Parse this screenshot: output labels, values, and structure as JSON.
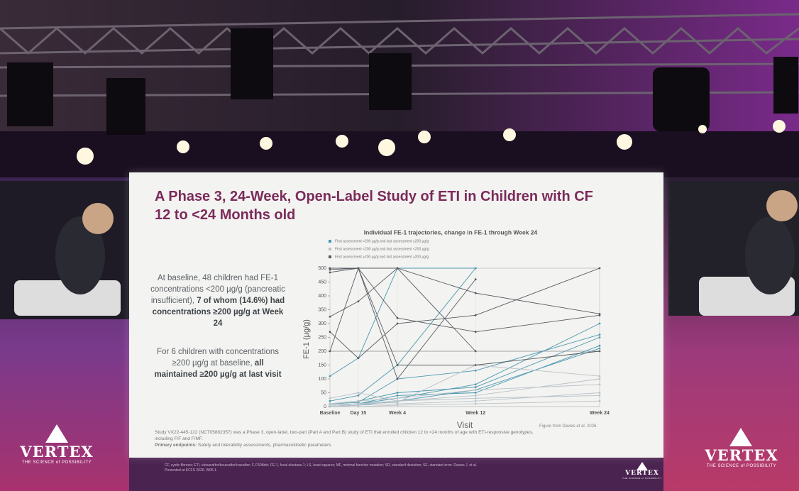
{
  "slide": {
    "title": "A Phase 3, 24-Week, Open-Label Study of ETI in Children with CF 12 to <24 Months old",
    "paragraphs": [
      [
        {
          "text": "At baseline, 48 children had FE-1 concentrations <200 µg/g (pancreatic insufficient), "
        },
        {
          "text": "7 of whom (14.6%) had concentrations ≥200 µg/g at Week 24",
          "bold": true
        }
      ],
      [
        {
          "text": "For 6 children with concentrations ≥200 µg/g at baseline, "
        },
        {
          "text": "all maintained ≥200 µg/g at last visit",
          "bold": true
        }
      ]
    ],
    "footnote": [
      {
        "text": "Study VX22-445-122 (NCT05882357) was a Phase 3, open-label, two-part (Part A and Part B) study of ETI that enrolled children 12 to <24 months of age with ETI-responsive genotypes, including F/F and F/MF."
      },
      {
        "text": "Primary endpoints:",
        "bold": true
      },
      {
        "text": " Safety and tolerability assessments, pharmacokinetic parameters"
      }
    ],
    "source": "Figure from Davies et al. 2026.",
    "abbreviations": "CF, cystic fibrosis; ETI, elexacaftor/tezacaftor/ivacaftor; F, F508del; FE-1, fecal elastase-1; LS, least squares; MF, minimal function mutation; SD, standard deviation; SE, standard error. Davies J, et al. Presented at ECFS 2026. W05.1."
  },
  "chart_data": {
    "type": "line",
    "title": "Individual FE-1 trajectories, change in FE-1 through Week 24",
    "x_label": "Visit",
    "y_label": "FE-1 (µg/g)",
    "categories": [
      "Baseline",
      "Day 15",
      "Week 4",
      "Week 12",
      "Week 24"
    ],
    "ylim": [
      0,
      500
    ],
    "yticks": [
      0,
      50,
      100,
      150,
      200,
      250,
      300,
      350,
      400,
      450,
      500
    ],
    "reference_line": 200,
    "groups": [
      {
        "name": "First assessment <200 µg/g and last assessment ≥200 µg/g",
        "color": "#4a98b0",
        "trajectories": [
          [
            110,
            175,
            500,
            500,
            null
          ],
          [
            10,
            20,
            50,
            70,
            250
          ],
          [
            5,
            10,
            30,
            80,
            300
          ],
          [
            0,
            5,
            20,
            60,
            210
          ],
          [
            20,
            40,
            150,
            500,
            null
          ],
          [
            10,
            15,
            100,
            130,
            260
          ],
          [
            5,
            10,
            40,
            50,
            220
          ]
        ]
      },
      {
        "name": "First assessment <200 µg/g and last assessment <200 µg/g",
        "color": "#b9c2c8",
        "trajectories": [
          [
            5,
            10,
            20,
            40,
            100
          ],
          [
            0,
            5,
            10,
            20,
            50
          ],
          [
            10,
            20,
            30,
            60,
            80
          ],
          [
            30,
            50,
            20,
            30,
            40
          ],
          [
            0,
            0,
            5,
            10,
            20
          ],
          [
            0,
            10,
            15,
            150,
            110
          ]
        ]
      },
      {
        "name": "First assessment ≥200 µg/g and last assessment ≥200 µg/g",
        "color": "#555b60",
        "trajectories": [
          [
            495,
            500,
            500,
            410,
            335
          ],
          [
            485,
            500,
            320,
            270,
            330
          ],
          [
            325,
            380,
            500,
            200,
            null
          ],
          [
            270,
            175,
            300,
            330,
            500
          ],
          [
            200,
            500,
            100,
            460,
            null
          ],
          [
            500,
            500,
            150,
            150,
            200
          ]
        ]
      }
    ]
  },
  "logo": {
    "name": "VERTEX",
    "tagline": "THE SCIENCE of POSSIBILITY"
  }
}
